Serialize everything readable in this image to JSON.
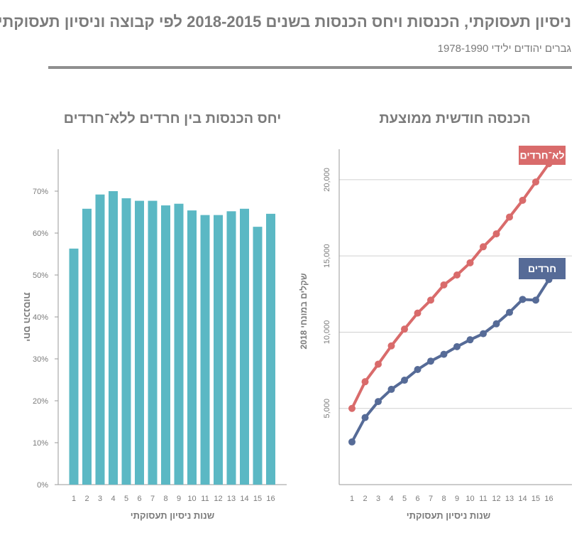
{
  "header": {
    "title": "ניסיון תעסוקתי, הכנסות ויחס הכנסות בשנים 2018-2015 לפי קבוצה וניסיון תעסוקתי",
    "subtitle": "גברים יהודים ילידי 1978-1990"
  },
  "colors": {
    "bar": "#5bb8c4",
    "non_haredi": "#d96b6b",
    "haredi": "#566b97",
    "axis": "#9a9a9a",
    "grid": "#d0d0d0",
    "text": "#7b7b7b"
  },
  "chart_data": [
    {
      "type": "bar",
      "title": "יחס הכנסות בין חרדים ללא־חרדים",
      "xlabel": "שנות ניסיון תעסוקתי",
      "ylabel": "יחס הכנסות",
      "categories": [
        "1",
        "2",
        "3",
        "4",
        "5",
        "6",
        "7",
        "8",
        "9",
        "10",
        "11",
        "12",
        "13",
        "14",
        "15",
        "16"
      ],
      "values": [
        56.3,
        65.8,
        69.2,
        70.0,
        68.3,
        67.7,
        67.7,
        66.6,
        67.0,
        65.4,
        64.3,
        64.3,
        65.2,
        65.8,
        61.5,
        64.6
      ],
      "ylim": [
        0,
        80
      ],
      "yticks": [
        0,
        10,
        20,
        30,
        40,
        50,
        60,
        70
      ],
      "ytick_labels": [
        "0%",
        "10%",
        "20%",
        "30%",
        "40%",
        "50%",
        "60%",
        "70%"
      ],
      "grid": false
    },
    {
      "type": "line",
      "title": "הכנסה חודשית ממוצעת",
      "xlabel": "שנות ניסיון תעסוקתי",
      "ylabel": "שקלים במונחי 2018",
      "x": [
        1,
        2,
        3,
        4,
        5,
        6,
        7,
        8,
        9,
        10,
        11,
        12,
        13,
        14,
        15,
        16
      ],
      "ylim": [
        0,
        22000
      ],
      "yticks": [
        5000,
        10000,
        15000,
        20000
      ],
      "ytick_labels": [
        "5,000",
        "10,000",
        "15,000",
        "20,000"
      ],
      "grid": true,
      "series": [
        {
          "name": "לא־חרדים",
          "values": [
            5000,
            6750,
            7900,
            9100,
            10200,
            11250,
            12100,
            13100,
            13750,
            14550,
            15600,
            16450,
            17550,
            18650,
            19850,
            21050
          ]
        },
        {
          "name": "חרדים",
          "values": [
            2800,
            4400,
            5450,
            6250,
            6850,
            7550,
            8100,
            8550,
            9050,
            9500,
            9900,
            10550,
            11300,
            12150,
            12100,
            13450
          ]
        }
      ]
    }
  ]
}
